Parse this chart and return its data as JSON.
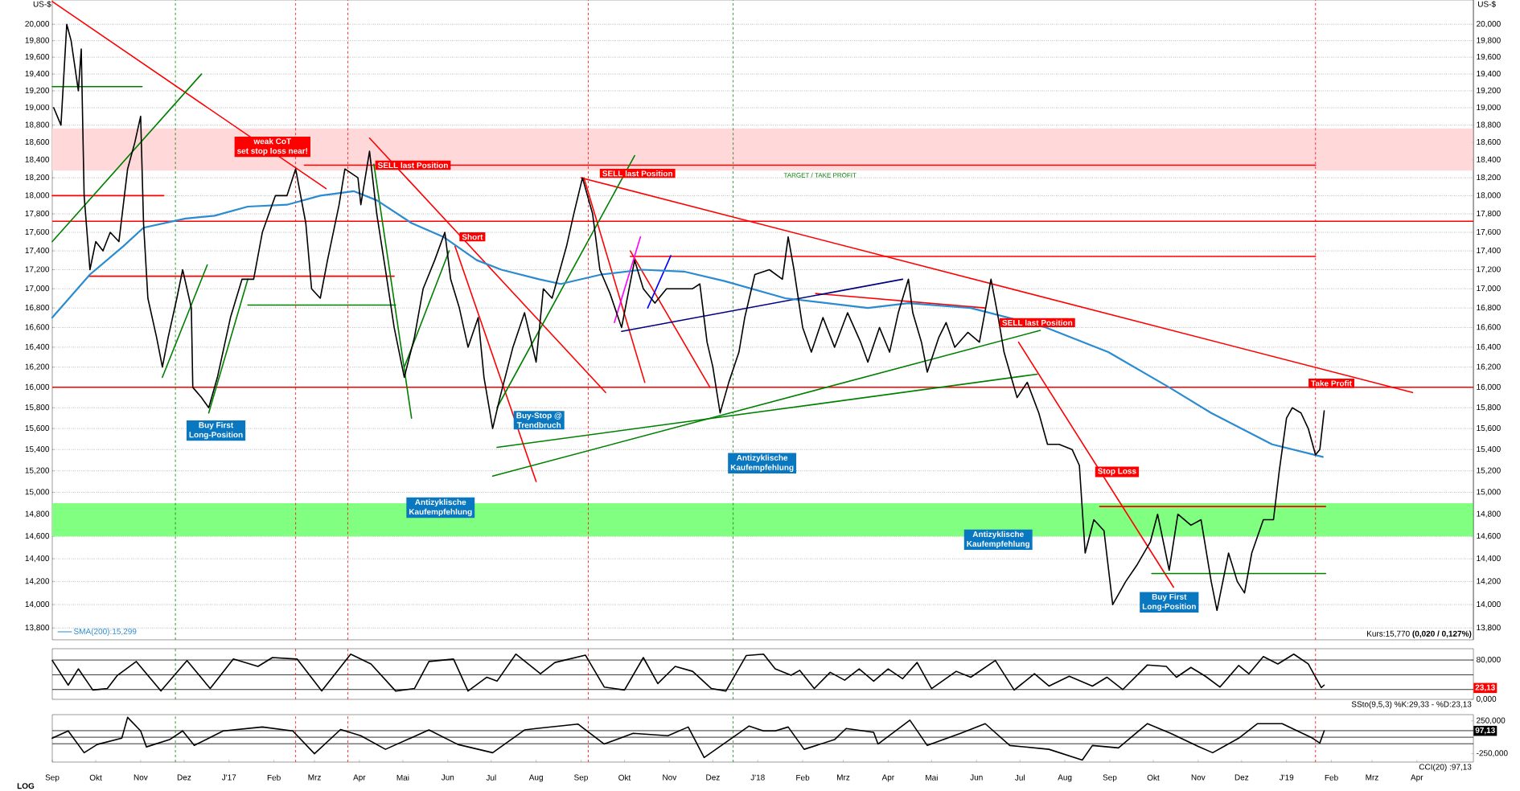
{
  "chart_data": [
    {
      "type": "line",
      "ylabel": "US-$",
      "y2label": "US-$",
      "log": true,
      "grid": "y",
      "legend": "bottom left",
      "tick_labels": "y",
      "xlim": [
        "2016-09-01",
        "2019-05-10"
      ],
      "ylim": [
        13.7,
        20.3
      ],
      "yticks": [
        {
          "value": 13.8,
          "label": "13,800"
        },
        {
          "value": 14.0,
          "label": "14,000"
        },
        {
          "value": 14.2,
          "label": "14,200"
        },
        {
          "value": 14.4,
          "label": "14,400"
        },
        {
          "value": 14.6,
          "label": "14,600"
        },
        {
          "value": 14.8,
          "label": "14,800"
        },
        {
          "value": 15.0,
          "label": "15,000"
        },
        {
          "value": 15.2,
          "label": "15,200"
        },
        {
          "value": 15.4,
          "label": "15,400"
        },
        {
          "value": 15.6,
          "label": "15,600"
        },
        {
          "value": 15.8,
          "label": "15,800"
        },
        {
          "value": 16.0,
          "label": "16,000"
        },
        {
          "value": 16.2,
          "label": "16,200"
        },
        {
          "value": 16.4,
          "label": "16,400"
        },
        {
          "value": 16.6,
          "label": "16,600"
        },
        {
          "value": 16.8,
          "label": "16,800"
        },
        {
          "value": 17.0,
          "label": "17,000"
        },
        {
          "value": 17.2,
          "label": "17,200"
        },
        {
          "value": 17.4,
          "label": "17,400"
        },
        {
          "value": 17.6,
          "label": "17,600"
        },
        {
          "value": 17.8,
          "label": "17,800"
        },
        {
          "value": 18.0,
          "label": "18,000"
        },
        {
          "value": 18.2,
          "label": "18,200"
        },
        {
          "value": 18.4,
          "label": "18,400"
        },
        {
          "value": 18.6,
          "label": "18,600"
        },
        {
          "value": 18.8,
          "label": "18,800"
        },
        {
          "value": 19.0,
          "label": "19,000"
        },
        {
          "value": 19.2,
          "label": "19,200"
        },
        {
          "value": 19.4,
          "label": "19,400"
        },
        {
          "value": 19.6,
          "label": "19,600"
        },
        {
          "value": 19.8,
          "label": "19,800"
        },
        {
          "value": 20.0,
          "label": "20,000"
        }
      ],
      "bands": [
        {
          "axis": "y",
          "from": 18.28,
          "to": 18.76,
          "color": "#ffd9d9"
        },
        {
          "axis": "y",
          "from": 14.6,
          "to": 14.9,
          "color": "#80ff80"
        }
      ],
      "ref_lines": [
        {
          "axis": "y",
          "value": 16.0,
          "color": "#ff0000"
        },
        {
          "axis": "y",
          "value": 17.72,
          "color": "#ff0000"
        },
        {
          "axis": "x",
          "value": "2016-11-25",
          "color": "#008000",
          "line_style": "dashed"
        },
        {
          "axis": "x",
          "value": "2017-02-16",
          "color": "#ff0000",
          "line_style": "dashed"
        },
        {
          "axis": "x",
          "value": "2017-03-24",
          "color": "#ff0000",
          "line_style": "dashed"
        },
        {
          "axis": "x",
          "value": "2017-09-06",
          "color": "#ff0000",
          "line_style": "dashed"
        },
        {
          "axis": "x",
          "value": "2017-12-15",
          "color": "#008000",
          "line_style": "dashed"
        },
        {
          "axis": "x",
          "value": "2019-01-21",
          "color": "#ff0000",
          "line_style": "dashed"
        }
      ],
      "series": [
        {
          "color": "#ff0000",
          "x": [
            "2016-09-01",
            "2017-03-09"
          ],
          "values": [
            20.28,
            18.08
          ]
        },
        {
          "color": "#ff0000",
          "x": [
            "2017-09-01",
            "2019-03-29"
          ],
          "values": [
            18.2,
            15.95
          ]
        },
        {
          "color": "#ff0000",
          "x": [
            "2017-02-22",
            "2019-01-21"
          ],
          "values": [
            18.34,
            18.34
          ]
        },
        {
          "color": "#ff0000",
          "x": [
            "2017-10-05",
            "2019-01-21"
          ],
          "values": [
            17.34,
            17.34
          ]
        },
        {
          "color": "#ff0000",
          "x": [
            "2016-09-26",
            "2017-04-25"
          ],
          "values": [
            17.13,
            17.13
          ]
        },
        {
          "color": "#ff0000",
          "x": [
            "2016-09-01",
            "2016-11-17"
          ],
          "values": [
            18.0,
            18.0
          ]
        },
        {
          "color": "#ff0000",
          "x": [
            "2018-08-25",
            "2019-01-28"
          ],
          "values": [
            14.87,
            14.87
          ]
        },
        {
          "color": "#ff0000",
          "x": [
            "2017-04-08",
            "2017-09-18"
          ],
          "values": [
            18.65,
            15.95
          ]
        },
        {
          "color": "#ff0000",
          "x": [
            "2017-06-06",
            "2017-08-01"
          ],
          "values": [
            17.45,
            15.1
          ]
        },
        {
          "color": "#ff0000",
          "x": [
            "2017-09-03",
            "2017-10-15"
          ],
          "values": [
            18.2,
            16.05
          ]
        },
        {
          "color": "#ff0000",
          "x": [
            "2017-10-05",
            "2017-11-29"
          ],
          "values": [
            17.4,
            16.0
          ]
        },
        {
          "color": "#ff0000",
          "x": [
            "2018-06-30",
            "2018-10-15"
          ],
          "values": [
            16.45,
            14.15
          ]
        },
        {
          "color": "#ff0000",
          "x": [
            "2018-02-10",
            "2018-06-07"
          ],
          "values": [
            16.95,
            16.8
          ]
        },
        {
          "color": "#008000",
          "x": [
            "2016-09-01",
            "2016-11-02"
          ],
          "values": [
            19.25,
            19.25
          ]
        },
        {
          "color": "#008000",
          "x": [
            "2017-01-14",
            "2017-04-26"
          ],
          "values": [
            16.83,
            16.83
          ]
        },
        {
          "color": "#008000",
          "x": [
            "2018-09-30",
            "2019-01-28"
          ],
          "values": [
            14.27,
            14.27
          ]
        },
        {
          "color": "#008000",
          "x": [
            "2016-09-01",
            "2016-12-13"
          ],
          "values": [
            17.5,
            19.4
          ]
        },
        {
          "color": "#008000",
          "x": [
            "2017-07-02",
            "2018-07-15"
          ],
          "values": [
            15.15,
            16.57
          ]
        },
        {
          "color": "#008000",
          "x": [
            "2017-07-05",
            "2018-07-13"
          ],
          "values": [
            15.42,
            16.13
          ]
        },
        {
          "color": "#008000",
          "x": [
            "2016-11-16",
            "2016-12-17"
          ],
          "values": [
            16.1,
            17.25
          ]
        },
        {
          "color": "#008000",
          "x": [
            "2016-12-18",
            "2017-01-14"
          ],
          "values": [
            15.75,
            17.1
          ]
        },
        {
          "color": "#008000",
          "x": [
            "2017-04-11",
            "2017-05-07"
          ],
          "values": [
            18.35,
            15.7
          ]
        },
        {
          "color": "#008000",
          "x": [
            "2017-05-02",
            "2017-06-02"
          ],
          "values": [
            16.2,
            17.4
          ]
        },
        {
          "color": "#008000",
          "x": [
            "2017-07-05",
            "2017-10-08"
          ],
          "values": [
            15.8,
            18.45
          ]
        },
        {
          "color": "#000080",
          "x": [
            "2017-09-29",
            "2018-04-11"
          ],
          "values": [
            16.56,
            17.1
          ]
        },
        {
          "color": "#ff00ff",
          "x": [
            "2017-09-24",
            "2017-10-12"
          ],
          "values": [
            16.65,
            17.55
          ]
        },
        {
          "color": "#0000ff",
          "x": [
            "2017-10-17",
            "2017-11-02"
          ],
          "values": [
            16.8,
            17.35
          ]
        },
        {
          "name": "SMA(200):15,299",
          "color": "#2a8bd0",
          "x": [
            "2016-09-01",
            "2016-09-27",
            "2016-10-20",
            "2016-11-03",
            "2016-12-02",
            "2016-12-22",
            "2017-01-14",
            "2017-02-10",
            "2017-03-05",
            "2017-03-28",
            "2017-04-13",
            "2017-05-07",
            "2017-05-29",
            "2017-06-21",
            "2017-07-08",
            "2017-08-03",
            "2017-08-18",
            "2017-09-15",
            "2017-10-13",
            "2017-11-11",
            "2017-12-09",
            "2018-01-20",
            "2018-03-18",
            "2018-04-15",
            "2018-05-28",
            "2018-07-19",
            "2018-08-31",
            "2018-10-12",
            "2018-11-10",
            "2018-12-22",
            "2019-01-26"
          ],
          "values": [
            16.7,
            17.15,
            17.45,
            17.65,
            17.75,
            17.78,
            17.88,
            17.9,
            18.0,
            18.05,
            17.95,
            17.7,
            17.55,
            17.3,
            17.2,
            17.1,
            17.05,
            17.15,
            17.2,
            17.18,
            17.08,
            16.9,
            16.8,
            16.85,
            16.8,
            16.6,
            16.35,
            16.0,
            15.75,
            15.45,
            15.33
          ]
        },
        {
          "color": "#000000",
          "x": [
            "2016-09-02",
            "2016-09-07",
            "2016-09-11",
            "2016-09-14",
            "2016-09-19",
            "2016-09-21",
            "2016-09-23",
            "2016-09-27",
            "2016-10-01",
            "2016-10-06",
            "2016-10-11",
            "2016-10-17",
            "2016-10-23",
            "2016-10-28",
            "2016-11-01",
            "2016-11-03",
            "2016-11-06",
            "2016-11-12",
            "2016-11-16",
            "2016-11-20",
            "2016-11-26",
            "2016-11-30",
            "2016-12-06",
            "2016-12-07",
            "2016-12-13",
            "2016-12-18",
            "2016-12-24",
            "2017-01-02",
            "2017-01-10",
            "2017-01-18",
            "2017-01-24",
            "2017-02-02",
            "2017-02-10",
            "2017-02-16",
            "2017-02-23",
            "2017-02-27",
            "2017-03-05",
            "2017-03-10",
            "2017-03-18",
            "2017-03-22",
            "2017-03-31",
            "2017-04-02",
            "2017-04-08",
            "2017-04-13",
            "2017-04-19",
            "2017-04-25",
            "2017-05-02",
            "2017-05-09",
            "2017-05-15",
            "2017-05-23",
            "2017-05-30",
            "2017-06-03",
            "2017-06-09",
            "2017-06-15",
            "2017-06-22",
            "2017-06-26",
            "2017-07-02",
            "2017-07-07",
            "2017-07-16",
            "2017-07-24",
            "2017-08-01",
            "2017-08-06",
            "2017-08-12",
            "2017-08-22",
            "2017-08-27",
            "2017-09-02",
            "2017-09-09",
            "2017-09-14",
            "2017-09-21",
            "2017-09-29",
            "2017-10-08",
            "2017-10-14",
            "2017-10-22",
            "2017-10-30",
            "2017-11-08",
            "2017-11-17",
            "2017-11-22",
            "2017-11-27",
            "2017-12-01",
            "2017-12-06",
            "2017-12-12",
            "2017-12-19",
            "2017-12-23",
            "2017-12-30",
            "2018-01-09",
            "2018-01-18",
            "2018-01-22",
            "2018-01-26",
            "2018-02-01",
            "2018-02-07",
            "2018-02-15",
            "2018-02-23",
            "2018-03-04",
            "2018-03-13",
            "2018-03-18",
            "2018-03-26",
            "2018-04-02",
            "2018-04-08",
            "2018-04-15",
            "2018-04-18",
            "2018-04-24",
            "2018-04-28",
            "2018-05-06",
            "2018-05-11",
            "2018-05-17",
            "2018-05-26",
            "2018-06-03",
            "2018-06-11",
            "2018-06-16",
            "2018-06-20",
            "2018-06-29",
            "2018-07-06",
            "2018-07-14",
            "2018-07-20",
            "2018-07-28",
            "2018-08-06",
            "2018-08-11",
            "2018-08-15",
            "2018-08-21",
            "2018-08-28",
            "2018-09-03",
            "2018-09-12",
            "2018-09-20",
            "2018-09-29",
            "2018-10-04",
            "2018-10-12",
            "2018-10-18",
            "2018-10-27",
            "2018-11-03",
            "2018-11-10",
            "2018-11-14",
            "2018-11-22",
            "2018-11-28",
            "2018-12-03",
            "2018-12-08",
            "2018-12-16",
            "2018-12-23",
            "2018-12-27",
            "2019-01-01",
            "2019-01-05",
            "2019-01-11",
            "2019-01-16",
            "2019-01-21",
            "2019-01-24",
            "2019-01-27"
          ],
          "values": [
            19.0,
            18.8,
            20.0,
            19.8,
            19.2,
            19.7,
            18.0,
            17.2,
            17.5,
            17.4,
            17.6,
            17.5,
            18.3,
            18.6,
            18.9,
            17.7,
            16.9,
            16.5,
            16.2,
            16.5,
            16.9,
            17.2,
            16.8,
            16.0,
            15.9,
            15.8,
            16.1,
            16.7,
            17.1,
            17.1,
            17.6,
            18.0,
            18.0,
            18.3,
            17.7,
            17.0,
            16.9,
            17.3,
            17.9,
            18.3,
            18.2,
            17.9,
            18.5,
            17.8,
            17.2,
            16.6,
            16.1,
            16.5,
            17.0,
            17.3,
            17.6,
            17.1,
            16.8,
            16.4,
            16.7,
            16.1,
            15.6,
            15.9,
            16.4,
            16.75,
            16.25,
            17.0,
            16.9,
            17.45,
            17.8,
            18.2,
            17.8,
            17.2,
            16.95,
            16.6,
            17.3,
            17.0,
            16.85,
            17.0,
            17.0,
            17.0,
            17.05,
            16.45,
            16.2,
            15.75,
            16.05,
            16.35,
            16.7,
            17.15,
            17.2,
            17.1,
            17.55,
            17.2,
            16.6,
            16.35,
            16.7,
            16.4,
            16.75,
            16.45,
            16.25,
            16.6,
            16.35,
            16.75,
            17.1,
            16.75,
            16.45,
            16.15,
            16.5,
            16.65,
            16.4,
            16.55,
            16.45,
            17.1,
            16.7,
            16.35,
            15.9,
            16.05,
            15.75,
            15.45,
            15.45,
            15.4,
            15.25,
            14.45,
            14.75,
            14.65,
            14.0,
            14.2,
            14.35,
            14.55,
            14.8,
            14.3,
            14.8,
            14.7,
            14.75,
            14.2,
            13.95,
            14.45,
            14.2,
            14.1,
            14.45,
            14.75,
            14.75,
            15.2,
            15.7,
            15.8,
            15.75,
            15.6,
            15.35,
            15.4,
            15.77
          ]
        }
      ],
      "annotations": [
        "weak CoT",
        "set stop loss near!",
        "SELL last Position",
        "Short",
        "SELL last Position",
        "TARGET / TAKE PROFIT",
        "SELL last Position",
        "Take Profit",
        "Stop Loss",
        "Buy First",
        "Long-Position",
        "Buy-Stop @",
        "Trendbruch",
        "Antizyklische",
        "Kaufempfehlung",
        "Antizyklische",
        "Kaufempfehlung",
        "Antizyklische",
        "Kaufempfehlung",
        "Buy First",
        "Long-Position",
        "Kurs:15,770 **(0,020 / 0,127%)**"
      ]
    },
    {
      "type": "line",
      "tick_labels": "y",
      "xlim": [
        "2016-09-01",
        "2019-05-10"
      ],
      "ylim": [
        0,
        103
      ],
      "yticks": [
        {
          "value": 0,
          "label": "0,000"
        },
        {
          "value": 80,
          "label": "80,000"
        }
      ],
      "ref_lines": [
        {
          "axis": "y",
          "value": 20,
          "color": "#000000"
        },
        {
          "axis": "y",
          "value": 50,
          "color": "#000000"
        },
        {
          "axis": "y",
          "value": 80,
          "color": "#000000"
        },
        {
          "axis": "x",
          "value": "2016-11-25",
          "color": "#008000",
          "line_style": "dashed"
        },
        {
          "axis": "x",
          "value": "2017-02-16",
          "color": "#ff0000",
          "line_style": "dashed"
        },
        {
          "axis": "x",
          "value": "2017-03-24",
          "color": "#ff0000",
          "line_style": "dashed"
        },
        {
          "axis": "x",
          "value": "2017-09-06",
          "color": "#ff0000",
          "line_style": "dashed"
        },
        {
          "axis": "x",
          "value": "2017-12-15",
          "color": "#008000",
          "line_style": "dashed"
        },
        {
          "axis": "x",
          "value": "2019-01-21",
          "color": "#ff0000",
          "line_style": "dashed"
        }
      ],
      "series": [
        {
          "color": "#000000",
          "x": [
            "2016-09-01",
            "2016-09-12",
            "2016-09-19",
            "2016-09-29",
            "2016-10-09",
            "2016-10-16",
            "2016-10-29",
            "2016-11-15",
            "2016-12-03",
            "2016-12-19",
            "2017-01-04",
            "2017-01-21",
            "2017-01-31",
            "2017-02-17",
            "2017-03-06",
            "2017-03-26",
            "2017-04-09",
            "2017-04-26",
            "2017-05-09",
            "2017-05-19",
            "2017-06-05",
            "2017-06-15",
            "2017-06-28",
            "2017-07-05",
            "2017-07-18",
            "2017-08-04",
            "2017-08-14",
            "2017-09-04",
            "2017-09-17",
            "2017-10-01",
            "2017-10-14",
            "2017-10-24",
            "2017-11-05",
            "2017-11-17",
            "2017-11-30",
            "2017-12-10",
            "2017-12-24",
            "2018-01-05",
            "2018-01-13",
            "2018-01-24",
            "2018-01-30",
            "2018-02-09",
            "2018-02-20",
            "2018-03-02",
            "2018-03-12",
            "2018-03-22",
            "2018-04-01",
            "2018-04-11",
            "2018-04-21",
            "2018-05-01",
            "2018-05-18",
            "2018-05-28",
            "2018-06-14",
            "2018-06-27",
            "2018-07-11",
            "2018-07-21",
            "2018-08-04",
            "2018-08-20",
            "2018-08-30",
            "2018-09-10",
            "2018-09-27",
            "2018-10-10",
            "2018-10-17",
            "2018-10-27",
            "2018-11-06",
            "2018-11-16",
            "2018-11-29",
            "2018-12-06",
            "2018-12-16",
            "2018-12-26",
            "2019-01-06",
            "2019-01-16",
            "2019-01-25",
            "2019-01-27"
          ],
          "values": [
            79,
            29,
            62,
            19,
            22,
            49,
            77,
            17,
            79,
            22,
            82,
            67,
            85,
            82,
            17,
            92,
            72,
            17,
            22,
            77,
            82,
            17,
            45,
            37,
            92,
            52,
            75,
            90,
            25,
            19,
            85,
            32,
            67,
            57,
            22,
            17,
            89,
            92,
            62,
            49,
            59,
            22,
            55,
            39,
            62,
            37,
            62,
            42,
            75,
            22,
            57,
            45,
            79,
            19,
            52,
            27,
            47,
            27,
            45,
            20,
            70,
            67,
            45,
            65,
            47,
            25,
            69,
            52,
            87,
            72,
            92,
            72,
            24,
            29
          ]
        }
      ],
      "annotations": [
        {
          "text": "23,13",
          "x": "2019-05-10",
          "y": 23.13
        },
        "SSto(9,5,3) %K:29,33 - %D:23,13"
      ]
    },
    {
      "type": "line",
      "xlim": [
        "2016-09-01",
        "2019-05-10"
      ],
      "ylim": [
        -380,
        345
      ],
      "xticks": [
        {
          "value": "2016-09-01",
          "label": "Sep"
        },
        {
          "value": "2016-10-01",
          "label": "Okt"
        },
        {
          "value": "2016-11-01",
          "label": "Nov"
        },
        {
          "value": "2016-12-01",
          "label": "Dez"
        },
        {
          "value": "2017-01-01",
          "label": "J'17"
        },
        {
          "value": "2017-02-01",
          "label": "Feb"
        },
        {
          "value": "2017-03-01",
          "label": "Mrz"
        },
        {
          "value": "2017-04-01",
          "label": "Apr"
        },
        {
          "value": "2017-05-01",
          "label": "Mai"
        },
        {
          "value": "2017-06-01",
          "label": "Jun"
        },
        {
          "value": "2017-07-01",
          "label": "Jul"
        },
        {
          "value": "2017-08-01",
          "label": "Aug"
        },
        {
          "value": "2017-09-01",
          "label": "Sep"
        },
        {
          "value": "2017-10-01",
          "label": "Okt"
        },
        {
          "value": "2017-11-01",
          "label": "Nov"
        },
        {
          "value": "2017-12-01",
          "label": "Dez"
        },
        {
          "value": "2018-01-01",
          "label": "J'18"
        },
        {
          "value": "2018-02-01",
          "label": "Feb"
        },
        {
          "value": "2018-03-01",
          "label": "Mrz"
        },
        {
          "value": "2018-04-01",
          "label": "Apr"
        },
        {
          "value": "2018-05-01",
          "label": "Mai"
        },
        {
          "value": "2018-06-01",
          "label": "Jun"
        },
        {
          "value": "2018-07-01",
          "label": "Jul"
        },
        {
          "value": "2018-08-01",
          "label": "Aug"
        },
        {
          "value": "2018-09-01",
          "label": "Sep"
        },
        {
          "value": "2018-10-01",
          "label": "Okt"
        },
        {
          "value": "2018-11-01",
          "label": "Nov"
        },
        {
          "value": "2018-12-01",
          "label": "Dez"
        },
        {
          "value": "2019-01-01",
          "label": "J'19"
        },
        {
          "value": "2019-02-01",
          "label": "Feb"
        },
        {
          "value": "2019-03-01",
          "label": "Mrz"
        },
        {
          "value": "2019-04-01",
          "label": "Apr"
        }
      ],
      "yticks": [
        {
          "value": -250,
          "label": "-250,000"
        },
        {
          "value": 250,
          "label": "250,000"
        }
      ],
      "ref_lines": [
        {
          "axis": "y",
          "value": 100,
          "color": "#000000"
        },
        {
          "axis": "y",
          "value": 0,
          "color": "#000000"
        },
        {
          "axis": "y",
          "value": -100,
          "color": "#000000"
        },
        {
          "axis": "x",
          "value": "2016-11-25",
          "color": "#008000",
          "line_style": "dashed"
        },
        {
          "axis": "x",
          "value": "2017-02-16",
          "color": "#ff0000",
          "line_style": "dashed"
        },
        {
          "axis": "x",
          "value": "2017-03-24",
          "color": "#ff0000",
          "line_style": "dashed"
        },
        {
          "axis": "x",
          "value": "2017-09-06",
          "color": "#ff0000",
          "line_style": "dashed"
        },
        {
          "axis": "x",
          "value": "2017-12-15",
          "color": "#008000",
          "line_style": "dashed"
        },
        {
          "axis": "x",
          "value": "2019-01-21",
          "color": "#ff0000",
          "line_style": "dashed"
        }
      ],
      "series": [
        {
          "color": "#000000",
          "x": [
            "2016-09-01",
            "2016-09-12",
            "2016-09-23",
            "2016-10-02",
            "2016-10-19",
            "2016-10-23",
            "2016-11-01",
            "2016-11-05",
            "2016-11-21",
            "2016-11-30",
            "2016-12-08",
            "2016-12-28",
            "2017-01-24",
            "2017-02-14",
            "2017-03-01",
            "2017-03-19",
            "2017-04-02",
            "2017-04-19",
            "2017-05-19",
            "2017-06-08",
            "2017-07-02",
            "2017-07-24",
            "2017-08-01",
            "2017-08-30",
            "2017-09-17",
            "2017-10-07",
            "2017-10-31",
            "2017-11-14",
            "2017-11-25",
            "2017-12-14",
            "2017-12-26",
            "2018-01-05",
            "2018-01-13",
            "2018-01-22",
            "2018-02-02",
            "2018-02-23",
            "2018-03-03",
            "2018-03-22",
            "2018-03-25",
            "2018-04-16",
            "2018-04-28",
            "2018-05-21",
            "2018-06-07",
            "2018-06-24",
            "2018-07-21",
            "2018-08-13",
            "2018-08-20",
            "2018-09-07",
            "2018-09-27",
            "2018-10-13",
            "2018-11-01",
            "2018-11-11",
            "2018-11-29",
            "2018-12-12",
            "2018-12-29",
            "2019-01-19",
            "2019-01-24",
            "2019-01-27"
          ],
          "values": [
            -15,
            96,
            -237,
            -111,
            -15,
            304,
            96,
            -148,
            -37,
            96,
            -126,
            96,
            156,
            96,
            -252,
            118,
            22,
            -185,
            111,
            -111,
            -237,
            111,
            133,
            200,
            -104,
            60,
            22,
            156,
            -311,
            -15,
            171,
            96,
            96,
            156,
            -185,
            -37,
            133,
            74,
            -104,
            260,
            -126,
            60,
            207,
            -126,
            -185,
            -349,
            -126,
            -163,
            207,
            60,
            -141,
            -237,
            -15,
            207,
            207,
            -15,
            -89,
            97
          ]
        }
      ],
      "annotations": [
        {
          "text": "97,13",
          "x": "2019-05-10",
          "y": 97.13
        },
        "CCI(20) :97,13",
        "LOG"
      ]
    }
  ]
}
